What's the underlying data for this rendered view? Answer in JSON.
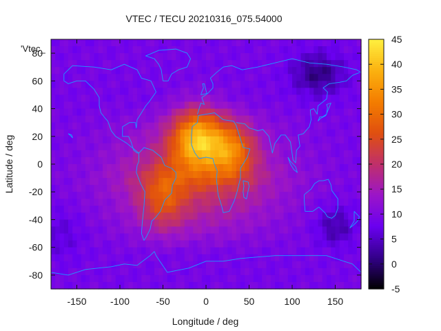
{
  "chart_data": {
    "type": "heatmap",
    "title": "VTEC / TECU 20210316_075.54000",
    "xlabel": "Longitude / deg",
    "ylabel": "Latitude / deg",
    "xlim": [
      -180,
      180
    ],
    "ylim": [
      -90,
      90
    ],
    "x_ticks": [
      -150,
      -100,
      -50,
      0,
      50,
      100,
      150
    ],
    "x_tick_labels": [
      "-150",
      "-100",
      "-50",
      "0",
      "50",
      "100",
      "150"
    ],
    "y_ticks": [
      80,
      60,
      40,
      20,
      0,
      -20,
      -40,
      -60,
      -80
    ],
    "y_tick_labels": [
      "80",
      "60",
      "40",
      "20",
      "0",
      "-20",
      "-40",
      "-60",
      "-80"
    ],
    "legend_label": "'Vtec_",
    "colorbar": {
      "range": [
        -5,
        45
      ],
      "ticks": [
        45,
        40,
        35,
        30,
        25,
        20,
        15,
        10,
        5,
        0,
        -5
      ],
      "tick_labels": [
        "45",
        "40",
        "35",
        "30",
        "25",
        "20",
        "15",
        "10",
        "5",
        "0",
        "-5"
      ],
      "palette": [
        "#000000",
        "#33008a",
        "#6a00f0",
        "#9b15c8",
        "#c0306a",
        "#e0500f",
        "#f47d00",
        "#fbb210",
        "#fff040"
      ]
    },
    "field": {
      "background_tecu": 9,
      "grid_step_deg": 5,
      "peaks": [
        {
          "lon": -10,
          "lat": 18,
          "tecu": 44
        },
        {
          "lon": 30,
          "lat": 10,
          "tecu": 35
        },
        {
          "lon": -50,
          "lat": -25,
          "tecu": 30
        }
      ],
      "lows": [
        {
          "lon": 130,
          "lat": 65,
          "tecu": 1
        },
        {
          "lon": 150,
          "lat": -45,
          "tecu": 3
        },
        {
          "lon": -170,
          "lat": -50,
          "tecu": 6
        }
      ]
    },
    "coastline_color": "#1e9bff"
  }
}
